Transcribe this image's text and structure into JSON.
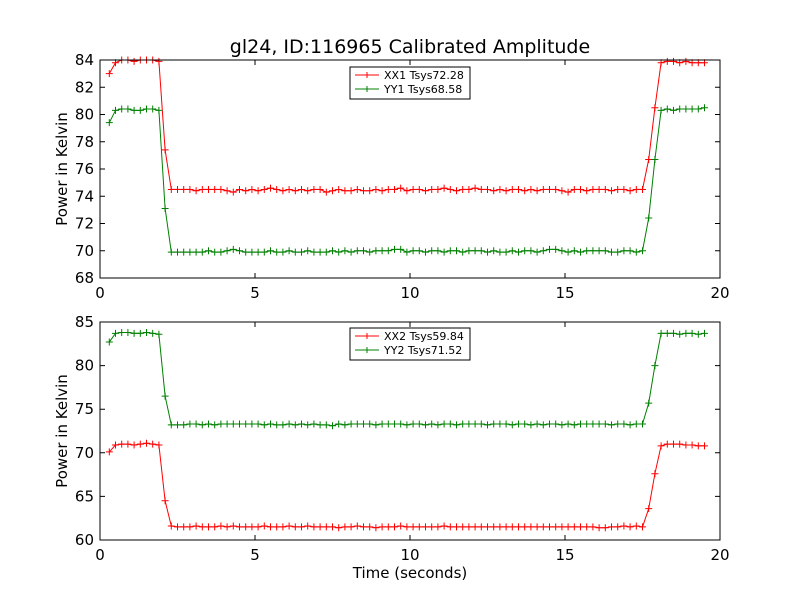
{
  "figure": {
    "title": "gl24, ID:116965 Calibrated Amplitude",
    "xlabel": "Time (seconds)"
  },
  "chart_data": [
    {
      "type": "line",
      "ylabel": "Power in Kelvin",
      "xlim": [
        0,
        20
      ],
      "ylim": [
        68,
        84
      ],
      "xticks": [
        0,
        5,
        10,
        15,
        20
      ],
      "yticks": [
        68,
        70,
        72,
        74,
        76,
        78,
        80,
        82,
        84
      ],
      "legend": "top-center",
      "grid": false,
      "series": [
        {
          "name": "XX1 Tsys72.28",
          "color": "#ff0000",
          "x": [
            0.3,
            0.5,
            0.7,
            0.9,
            1.1,
            1.3,
            1.5,
            1.7,
            1.9,
            2.1,
            2.3,
            2.5,
            2.7,
            2.9,
            3.1,
            3.3,
            3.5,
            3.7,
            3.9,
            4.1,
            4.3,
            4.5,
            4.7,
            4.9,
            5.1,
            5.3,
            5.5,
            5.7,
            5.9,
            6.1,
            6.3,
            6.5,
            6.7,
            6.9,
            7.1,
            7.3,
            7.5,
            7.7,
            7.9,
            8.1,
            8.3,
            8.5,
            8.7,
            8.9,
            9.1,
            9.3,
            9.5,
            9.7,
            9.9,
            10.1,
            10.3,
            10.5,
            10.7,
            10.9,
            11.1,
            11.3,
            11.5,
            11.7,
            11.9,
            12.1,
            12.3,
            12.5,
            12.7,
            12.9,
            13.1,
            13.3,
            13.5,
            13.7,
            13.9,
            14.1,
            14.3,
            14.5,
            14.7,
            14.9,
            15.1,
            15.3,
            15.5,
            15.7,
            15.9,
            16.1,
            16.3,
            16.5,
            16.7,
            16.9,
            17.1,
            17.3,
            17.5,
            17.7,
            17.9,
            18.1,
            18.3,
            18.5,
            18.7,
            18.9,
            19.1,
            19.3,
            19.5
          ],
          "y": [
            83.0,
            83.8,
            84.0,
            84.0,
            83.9,
            84.0,
            84.0,
            84.0,
            83.9,
            77.4,
            74.5,
            74.5,
            74.5,
            74.5,
            74.4,
            74.5,
            74.5,
            74.5,
            74.5,
            74.4,
            74.3,
            74.5,
            74.4,
            74.5,
            74.4,
            74.5,
            74.6,
            74.5,
            74.4,
            74.5,
            74.4,
            74.5,
            74.4,
            74.5,
            74.5,
            74.3,
            74.4,
            74.5,
            74.4,
            74.4,
            74.5,
            74.4,
            74.4,
            74.5,
            74.4,
            74.5,
            74.5,
            74.6,
            74.4,
            74.5,
            74.5,
            74.4,
            74.5,
            74.5,
            74.6,
            74.5,
            74.4,
            74.5,
            74.5,
            74.6,
            74.5,
            74.5,
            74.4,
            74.5,
            74.4,
            74.5,
            74.5,
            74.4,
            74.5,
            74.4,
            74.5,
            74.5,
            74.5,
            74.4,
            74.3,
            74.5,
            74.5,
            74.4,
            74.5,
            74.5,
            74.5,
            74.4,
            74.5,
            74.5,
            74.4,
            74.5,
            74.5,
            76.7,
            80.5,
            83.8,
            83.9,
            83.9,
            83.8,
            83.9,
            83.8,
            83.8,
            83.8
          ]
        },
        {
          "name": "YY1 Tsys68.58",
          "color": "#008000",
          "x": [
            0.3,
            0.5,
            0.7,
            0.9,
            1.1,
            1.3,
            1.5,
            1.7,
            1.9,
            2.1,
            2.3,
            2.5,
            2.7,
            2.9,
            3.1,
            3.3,
            3.5,
            3.7,
            3.9,
            4.1,
            4.3,
            4.5,
            4.7,
            4.9,
            5.1,
            5.3,
            5.5,
            5.7,
            5.9,
            6.1,
            6.3,
            6.5,
            6.7,
            6.9,
            7.1,
            7.3,
            7.5,
            7.7,
            7.9,
            8.1,
            8.3,
            8.5,
            8.7,
            8.9,
            9.1,
            9.3,
            9.5,
            9.7,
            9.9,
            10.1,
            10.3,
            10.5,
            10.7,
            10.9,
            11.1,
            11.3,
            11.5,
            11.7,
            11.9,
            12.1,
            12.3,
            12.5,
            12.7,
            12.9,
            13.1,
            13.3,
            13.5,
            13.7,
            13.9,
            14.1,
            14.3,
            14.5,
            14.7,
            14.9,
            15.1,
            15.3,
            15.5,
            15.7,
            15.9,
            16.1,
            16.3,
            16.5,
            16.7,
            16.9,
            17.1,
            17.3,
            17.5,
            17.7,
            17.9,
            18.1,
            18.3,
            18.5,
            18.7,
            18.9,
            19.1,
            19.3,
            19.5
          ],
          "y": [
            79.4,
            80.3,
            80.4,
            80.4,
            80.3,
            80.3,
            80.4,
            80.4,
            80.3,
            73.1,
            69.9,
            69.9,
            69.9,
            69.9,
            69.9,
            69.9,
            70.0,
            69.9,
            69.9,
            70.0,
            70.1,
            70.0,
            69.9,
            69.9,
            69.9,
            69.9,
            70.0,
            69.9,
            69.9,
            70.0,
            69.9,
            69.9,
            70.0,
            69.9,
            69.9,
            69.9,
            70.0,
            69.9,
            70.0,
            69.9,
            70.0,
            70.0,
            69.9,
            70.0,
            70.0,
            70.0,
            70.1,
            70.1,
            69.9,
            70.0,
            70.0,
            69.9,
            70.0,
            70.0,
            69.9,
            70.0,
            70.0,
            69.9,
            70.0,
            70.0,
            70.0,
            69.9,
            70.0,
            69.9,
            69.9,
            70.0,
            69.9,
            70.0,
            70.0,
            69.9,
            70.0,
            70.1,
            70.1,
            70.0,
            69.9,
            70.0,
            69.9,
            70.0,
            70.0,
            70.0,
            70.0,
            69.9,
            69.9,
            70.0,
            70.0,
            69.9,
            70.0,
            72.4,
            76.7,
            80.3,
            80.4,
            80.3,
            80.4,
            80.4,
            80.4,
            80.4,
            80.5
          ]
        }
      ]
    },
    {
      "type": "line",
      "ylabel": "Power in Kelvin",
      "xlabel": "Time (seconds)",
      "xlim": [
        0,
        20
      ],
      "ylim": [
        60,
        85
      ],
      "xticks": [
        0,
        5,
        10,
        15,
        20
      ],
      "yticks": [
        60,
        65,
        70,
        75,
        80,
        85
      ],
      "legend": "top-center",
      "grid": false,
      "series": [
        {
          "name": "XX2 Tsys59.84",
          "color": "#ff0000",
          "x": [
            0.3,
            0.5,
            0.7,
            0.9,
            1.1,
            1.3,
            1.5,
            1.7,
            1.9,
            2.1,
            2.3,
            2.5,
            2.7,
            2.9,
            3.1,
            3.3,
            3.5,
            3.7,
            3.9,
            4.1,
            4.3,
            4.5,
            4.7,
            4.9,
            5.1,
            5.3,
            5.5,
            5.7,
            5.9,
            6.1,
            6.3,
            6.5,
            6.7,
            6.9,
            7.1,
            7.3,
            7.5,
            7.7,
            7.9,
            8.1,
            8.3,
            8.5,
            8.7,
            8.9,
            9.1,
            9.3,
            9.5,
            9.7,
            9.9,
            10.1,
            10.3,
            10.5,
            10.7,
            10.9,
            11.1,
            11.3,
            11.5,
            11.7,
            11.9,
            12.1,
            12.3,
            12.5,
            12.7,
            12.9,
            13.1,
            13.3,
            13.5,
            13.7,
            13.9,
            14.1,
            14.3,
            14.5,
            14.7,
            14.9,
            15.1,
            15.3,
            15.5,
            15.7,
            15.9,
            16.1,
            16.3,
            16.5,
            16.7,
            16.9,
            17.1,
            17.3,
            17.5,
            17.7,
            17.9,
            18.1,
            18.3,
            18.5,
            18.7,
            18.9,
            19.1,
            19.3,
            19.5
          ],
          "y": [
            70.1,
            70.9,
            71.0,
            71.0,
            70.9,
            71.0,
            71.1,
            71.0,
            70.9,
            64.5,
            61.6,
            61.5,
            61.5,
            61.5,
            61.6,
            61.5,
            61.5,
            61.5,
            61.6,
            61.5,
            61.6,
            61.5,
            61.5,
            61.5,
            61.5,
            61.6,
            61.5,
            61.5,
            61.5,
            61.6,
            61.5,
            61.5,
            61.6,
            61.5,
            61.5,
            61.5,
            61.5,
            61.4,
            61.5,
            61.5,
            61.6,
            61.5,
            61.5,
            61.4,
            61.5,
            61.5,
            61.5,
            61.6,
            61.5,
            61.5,
            61.5,
            61.5,
            61.5,
            61.5,
            61.6,
            61.5,
            61.5,
            61.5,
            61.5,
            61.5,
            61.5,
            61.5,
            61.5,
            61.5,
            61.5,
            61.5,
            61.5,
            61.5,
            61.5,
            61.5,
            61.5,
            61.5,
            61.5,
            61.5,
            61.5,
            61.5,
            61.5,
            61.5,
            61.5,
            61.4,
            61.4,
            61.5,
            61.5,
            61.6,
            61.5,
            61.6,
            61.5,
            63.6,
            67.6,
            70.8,
            71.0,
            71.0,
            71.0,
            70.9,
            70.9,
            70.8,
            70.8
          ]
        },
        {
          "name": "YY2 Tsys71.52",
          "color": "#008000",
          "x": [
            0.3,
            0.5,
            0.7,
            0.9,
            1.1,
            1.3,
            1.5,
            1.7,
            1.9,
            2.1,
            2.3,
            2.5,
            2.7,
            2.9,
            3.1,
            3.3,
            3.5,
            3.7,
            3.9,
            4.1,
            4.3,
            4.5,
            4.7,
            4.9,
            5.1,
            5.3,
            5.5,
            5.7,
            5.9,
            6.1,
            6.3,
            6.5,
            6.7,
            6.9,
            7.1,
            7.3,
            7.5,
            7.7,
            7.9,
            8.1,
            8.3,
            8.5,
            8.7,
            8.9,
            9.1,
            9.3,
            9.5,
            9.7,
            9.9,
            10.1,
            10.3,
            10.5,
            10.7,
            10.9,
            11.1,
            11.3,
            11.5,
            11.7,
            11.9,
            12.1,
            12.3,
            12.5,
            12.7,
            12.9,
            13.1,
            13.3,
            13.5,
            13.7,
            13.9,
            14.1,
            14.3,
            14.5,
            14.7,
            14.9,
            15.1,
            15.3,
            15.5,
            15.7,
            15.9,
            16.1,
            16.3,
            16.5,
            16.7,
            16.9,
            17.1,
            17.3,
            17.5,
            17.7,
            17.9,
            18.1,
            18.3,
            18.5,
            18.7,
            18.9,
            19.1,
            19.3,
            19.5
          ],
          "y": [
            82.7,
            83.7,
            83.8,
            83.8,
            83.7,
            83.7,
            83.8,
            83.7,
            83.6,
            76.5,
            73.2,
            73.2,
            73.2,
            73.3,
            73.3,
            73.2,
            73.3,
            73.2,
            73.3,
            73.3,
            73.3,
            73.3,
            73.3,
            73.3,
            73.3,
            73.2,
            73.3,
            73.2,
            73.2,
            73.3,
            73.2,
            73.3,
            73.2,
            73.3,
            73.2,
            73.2,
            73.1,
            73.3,
            73.2,
            73.3,
            73.3,
            73.3,
            73.3,
            73.2,
            73.3,
            73.3,
            73.3,
            73.3,
            73.2,
            73.3,
            73.3,
            73.2,
            73.3,
            73.2,
            73.3,
            73.3,
            73.2,
            73.3,
            73.3,
            73.3,
            73.3,
            73.2,
            73.3,
            73.3,
            73.3,
            73.2,
            73.3,
            73.3,
            73.2,
            73.3,
            73.2,
            73.3,
            73.3,
            73.2,
            73.3,
            73.2,
            73.3,
            73.3,
            73.3,
            73.3,
            73.3,
            73.2,
            73.3,
            73.3,
            73.2,
            73.3,
            73.3,
            75.7,
            80.0,
            83.7,
            83.7,
            83.7,
            83.6,
            83.7,
            83.7,
            83.6,
            83.7
          ]
        }
      ]
    }
  ]
}
